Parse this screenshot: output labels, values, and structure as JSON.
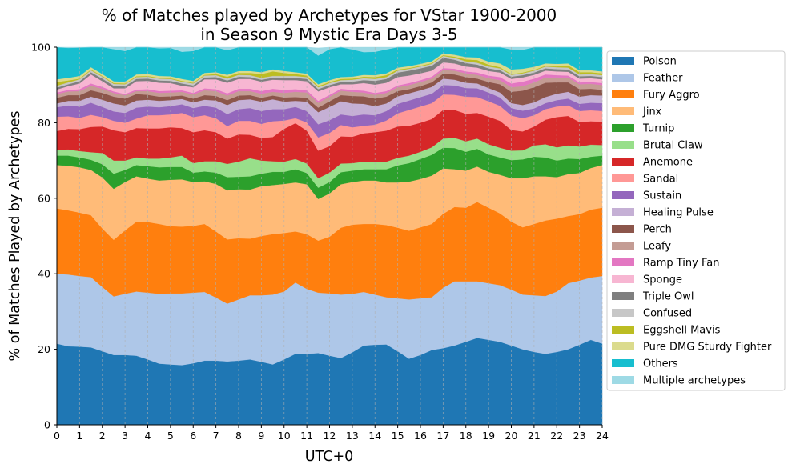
{
  "chart_data": {
    "type": "area",
    "stacked": true,
    "title_lines": [
      "% of Matches played by Archetypes for VStar 1900-2000",
      "in Season 9 Mystic Era Days 3-5"
    ],
    "xlabel": "UTC+0",
    "ylabel": "% of Matches Played by Archetypes",
    "xlim": [
      0,
      24
    ],
    "ylim": [
      0,
      100
    ],
    "x_ticks": [
      0,
      1,
      2,
      3,
      4,
      5,
      6,
      7,
      8,
      9,
      10,
      11,
      12,
      13,
      14,
      15,
      16,
      17,
      18,
      19,
      20,
      21,
      22,
      23,
      24
    ],
    "y_ticks": [
      0,
      20,
      40,
      60,
      80,
      100
    ],
    "grid": "vertical-dashed",
    "legend_position": "right-outside",
    "x": [
      0,
      0.5,
      1,
      1.5,
      2,
      2.5,
      3,
      3.5,
      4,
      4.5,
      5,
      5.5,
      6,
      6.5,
      7,
      7.5,
      8,
      8.5,
      9,
      9.5,
      10,
      10.5,
      11,
      11.5,
      12,
      12.5,
      13,
      13.5,
      14,
      14.5,
      15,
      15.5,
      16,
      16.5,
      17,
      17.5,
      18,
      18.5,
      19,
      19.5,
      20,
      20.5,
      21,
      21.5,
      22,
      22.5,
      23,
      23.5,
      24
    ],
    "series": [
      {
        "name": "Poison",
        "color": "#1f77b4",
        "values": [
          21.5,
          20.8,
          20.7,
          20.5,
          19.5,
          18.5,
          18.5,
          18.3,
          17.3,
          16.2,
          16,
          15.8,
          16.3,
          17,
          17,
          16.8,
          17,
          17.3,
          16.7,
          16,
          17.3,
          18.8,
          18.8,
          19,
          18.3,
          17.7,
          19.2,
          21,
          21.2,
          21.3,
          19.5,
          17.5,
          18.5,
          19.8,
          20.3,
          21,
          22,
          23,
          22.5,
          22,
          21,
          20,
          19.3,
          18.8,
          19.3,
          20,
          21.2,
          22.5,
          21.5
        ]
      },
      {
        "name": "Feather",
        "color": "#aec7e8",
        "values": [
          18.5,
          19,
          18.7,
          18.6,
          17,
          15.5,
          16.2,
          17,
          17.7,
          18.5,
          18.8,
          19,
          18.7,
          18.2,
          16.7,
          15.3,
          16.2,
          17,
          17.6,
          18.5,
          18,
          18.9,
          17.2,
          16,
          16.5,
          16.8,
          15.5,
          14.2,
          13.3,
          12.5,
          14,
          15.7,
          15,
          14,
          16,
          17,
          16,
          15,
          15,
          15,
          14.8,
          14.5,
          15,
          15.3,
          16,
          17.5,
          17,
          16.5,
          17.9
        ]
      },
      {
        "name": "Fury Aggro",
        "color": "#ff7f0e",
        "values": [
          17.3,
          17,
          16.8,
          16.4,
          15.5,
          15,
          16.8,
          18.5,
          18.7,
          18.5,
          17.8,
          17.7,
          17.7,
          18,
          17.5,
          17,
          16.2,
          15,
          15.7,
          16,
          15.5,
          13.5,
          14.5,
          13.8,
          15,
          17.7,
          18.3,
          18,
          18.7,
          19.1,
          18.7,
          18.2,
          18.8,
          19.4,
          19.6,
          19.7,
          19.5,
          21,
          20,
          19,
          18,
          17.8,
          18.9,
          20,
          19.3,
          17.8,
          17.6,
          18,
          18.1
        ]
      },
      {
        "name": "Jinx",
        "color": "#ffbb78",
        "values": [
          11.5,
          11.8,
          12,
          12,
          13.5,
          13.5,
          12.8,
          12,
          11.5,
          11.5,
          12.3,
          12.5,
          11.6,
          11.3,
          12.6,
          13,
          13,
          13,
          13.2,
          13,
          13,
          13,
          13.2,
          11,
          11.5,
          11.5,
          11.3,
          11.5,
          11.5,
          11.3,
          12,
          13,
          12.8,
          12.8,
          12,
          10,
          9.8,
          9.4,
          9.5,
          10.2,
          11.5,
          13,
          12.6,
          11.7,
          11,
          11.1,
          10.9,
          11,
          11.3
        ]
      },
      {
        "name": "Turnip",
        "color": "#2ca02c",
        "values": [
          2.5,
          2.7,
          2.6,
          2.7,
          3.5,
          4,
          3.2,
          3,
          3.3,
          3.5,
          3.4,
          3.3,
          2.5,
          2.6,
          3,
          3.5,
          3.3,
          3.5,
          3.3,
          3.5,
          3.2,
          3.5,
          3,
          3,
          3,
          3.2,
          3,
          3,
          3,
          3.5,
          4.5,
          4.9,
          5.3,
          5.5,
          5.5,
          5.6,
          5,
          4.7,
          4.6,
          4.6,
          4.8,
          5,
          5.2,
          5,
          4.4,
          4.1,
          3.7,
          3,
          2.5
        ]
      },
      {
        "name": "Brutal Claw",
        "color": "#98df8a",
        "values": [
          1.5,
          1.6,
          1.7,
          2,
          3,
          3.5,
          2.5,
          2,
          2,
          2.3,
          2.5,
          3,
          2.5,
          2.7,
          3,
          3.5,
          4,
          4.8,
          3.5,
          2.8,
          2.7,
          2.7,
          2.5,
          2.5,
          2.5,
          2.3,
          2,
          2,
          2,
          2,
          2,
          2,
          1.9,
          2,
          2.4,
          2.7,
          2.8,
          2.7,
          2.7,
          2.6,
          2.5,
          2.4,
          3,
          3.5,
          3.5,
          3.5,
          3.3,
          3.2,
          2.8
        ]
      },
      {
        "name": "Anemone",
        "color": "#d62728",
        "values": [
          5,
          5.5,
          5.8,
          6.7,
          7,
          8,
          7.5,
          7.8,
          8,
          8,
          8,
          7.3,
          8.2,
          8.2,
          7.7,
          6.7,
          7.2,
          6.2,
          6,
          6.4,
          8.7,
          9.5,
          8.7,
          7.3,
          7,
          7.2,
          7,
          7.5,
          7.8,
          8.2,
          8.3,
          7.9,
          7.7,
          7.5,
          7.6,
          7.4,
          7.3,
          6.8,
          7.3,
          7.1,
          5.5,
          5,
          5,
          6.5,
          8,
          7.8,
          6.5,
          6.2,
          6.2
        ]
      },
      {
        "name": "Sandal",
        "color": "#ff9896",
        "values": [
          3.8,
          3.3,
          3,
          3.2,
          2.5,
          2.5,
          2.5,
          2.5,
          3.5,
          3.5,
          3.4,
          4,
          4,
          4,
          3.7,
          3.3,
          3.6,
          3.7,
          3.7,
          4.2,
          2.2,
          1.3,
          2.2,
          3.5,
          3.5,
          3,
          2.5,
          2,
          2,
          2.7,
          3.5,
          4.2,
          4.3,
          4.2,
          4.1,
          4,
          4.5,
          4.2,
          4.1,
          4,
          3.8,
          3.5,
          3,
          2.8,
          2.8,
          2.8,
          2.9,
          2.9,
          2.8
        ]
      },
      {
        "name": "Sustain",
        "color": "#9467bd",
        "values": [
          2.5,
          2.9,
          3,
          3.2,
          2.7,
          2.5,
          2.6,
          2.9,
          2.3,
          2.1,
          2.2,
          2.3,
          2.4,
          2.5,
          2.8,
          3.2,
          3.1,
          3.4,
          3.4,
          3.2,
          3,
          3,
          3,
          3.5,
          3.4,
          2.8,
          3,
          3,
          2.5,
          2.5,
          2.5,
          2.5,
          2.5,
          2.5,
          2.5,
          2.5,
          2.3,
          2.3,
          2.3,
          2.2,
          2,
          2,
          1.8,
          1.6,
          1.7,
          1.8,
          1.9,
          2,
          2.1
        ]
      },
      {
        "name": "Healing Pulse",
        "color": "#c5b0d5",
        "values": [
          1,
          1.2,
          1.5,
          1.6,
          1.9,
          2.1,
          2,
          1.9,
          1.8,
          1.7,
          1.6,
          1.4,
          1.5,
          1.6,
          1.9,
          2.4,
          2.4,
          2.3,
          2.5,
          2.6,
          2,
          1.6,
          2.5,
          3.2,
          3.5,
          3.5,
          3.3,
          2.8,
          2.4,
          2,
          2,
          1.9,
          1.8,
          1.8,
          1.7,
          1.5,
          1.4,
          1.3,
          1.2,
          1.3,
          1.3,
          1.5,
          1.6,
          1.6,
          1.7,
          1.8,
          1.9,
          2,
          2
        ]
      },
      {
        "name": "Perch",
        "color": "#8c564b",
        "values": [
          1.5,
          1.5,
          1.5,
          1.7,
          1.8,
          1.8,
          1.8,
          1.7,
          1.3,
          1.1,
          1,
          0.9,
          1,
          1.2,
          1.2,
          1.3,
          1.2,
          1.1,
          1,
          1,
          1.1,
          1,
          1,
          1.2,
          1.5,
          1.6,
          2,
          2,
          2,
          1.8,
          1.4,
          1.1,
          1.1,
          1.2,
          1.3,
          1.4,
          1.5,
          1.3,
          1.6,
          2.2,
          3,
          3.8,
          4,
          3.8,
          3,
          2.5,
          2,
          1.7,
          1.5
        ]
      },
      {
        "name": "Leafy",
        "color": "#c49c94",
        "values": [
          1,
          1,
          1.1,
          1.2,
          1.1,
          1,
          0.9,
          0.8,
          1,
          1,
          1,
          1,
          1.1,
          1.3,
          1.3,
          1.2,
          1.2,
          1.1,
          1.1,
          1,
          1.2,
          1.4,
          1.4,
          1.3,
          1.2,
          1.2,
          1.1,
          1,
          1,
          1,
          1,
          1.1,
          1.1,
          1,
          1,
          1,
          1,
          1,
          1,
          1.1,
          1.2,
          1.2,
          1.3,
          1.4,
          1.3,
          1.3,
          1.3,
          1.3,
          1.3
        ]
      },
      {
        "name": "Ramp Tiny Fan",
        "color": "#e377c2",
        "values": [
          0.4,
          0.4,
          0.5,
          0.6,
          0.5,
          0.4,
          0.3,
          0.4,
          0.5,
          0.5,
          0.5,
          0.4,
          0.4,
          0.5,
          0.5,
          0.6,
          0.6,
          0.6,
          0.7,
          0.8,
          0.8,
          0.7,
          0.6,
          0.5,
          0.5,
          0.5,
          0.5,
          0.5,
          0.5,
          0.5,
          0.5,
          0.5,
          0.5,
          0.5,
          0.5,
          0.5,
          0.5,
          0.6,
          0.7,
          0.8,
          1,
          1.2,
          1,
          0.8,
          0.6,
          0.5,
          0.5,
          0.5,
          0.5
        ]
      },
      {
        "name": "Sponge",
        "color": "#f7b6d2",
        "values": [
          0.8,
          1,
          1.5,
          2.4,
          1.5,
          0.8,
          1.5,
          2.2,
          2.2,
          2.2,
          2,
          1.2,
          1.5,
          2.4,
          2.6,
          2.8,
          2.6,
          2.6,
          2.5,
          2.4,
          2.6,
          2.4,
          2.4,
          2.5,
          2,
          1.2,
          1.5,
          2,
          2.2,
          2.2,
          2.2,
          2,
          1.8,
          1.6,
          1.5,
          1.4,
          1.3,
          1.3,
          1.2,
          1.2,
          1.2,
          1.1,
          1,
          1,
          1,
          1,
          1,
          1,
          1
        ]
      },
      {
        "name": "Triple Owl",
        "color": "#7f7f7f",
        "values": [
          0.5,
          0.5,
          0.6,
          0.6,
          0.7,
          0.7,
          0.6,
          0.6,
          0.6,
          0.6,
          0.6,
          0.6,
          0.5,
          0.5,
          0.6,
          0.6,
          0.6,
          0.5,
          0.5,
          0.5,
          0.6,
          0.6,
          0.6,
          0.6,
          0.6,
          0.6,
          0.7,
          0.8,
          1,
          1,
          1.2,
          1.3,
          1.3,
          1.3,
          1.2,
          1,
          0.9,
          0.8,
          0.7,
          0.6,
          0.6,
          0.6,
          0.6,
          0.6,
          0.6,
          0.6,
          0.6,
          0.6,
          0.6
        ]
      },
      {
        "name": "Confused",
        "color": "#c7c7c7",
        "values": [
          0.5,
          0.5,
          0.5,
          0.5,
          0.5,
          0.5,
          0.5,
          0.5,
          0.5,
          0.5,
          0.5,
          0.5,
          0.5,
          0.5,
          0.5,
          0.5,
          0.5,
          0.5,
          0.5,
          0.5,
          0.5,
          0.5,
          0.5,
          0.5,
          0.5,
          0.5,
          0.5,
          0.5,
          0.5,
          0.5,
          0.5,
          0.5,
          0.5,
          0.5,
          0.5,
          0.5,
          0.5,
          0.5,
          0.5,
          0.5,
          0.5,
          0.5,
          0.5,
          0.5,
          0.5,
          0.5,
          0.5,
          0.5,
          0.5
        ]
      },
      {
        "name": "Eggshell Mavis",
        "color": "#bcbd22",
        "values": [
          1,
          0.5,
          0.2,
          0.2,
          0.2,
          0.2,
          0.2,
          0.2,
          0.2,
          0.2,
          0.2,
          0.2,
          0.2,
          0.2,
          0.3,
          0.5,
          0.5,
          0.6,
          1,
          1.2,
          0.8,
          0.5,
          0.4,
          0.3,
          0.3,
          0.3,
          0.3,
          0.4,
          0.5,
          0.5,
          0.3,
          0.2,
          0.2,
          0.2,
          0.2,
          0.3,
          0.5,
          0.7,
          0.5,
          0.3,
          0.2,
          0.2,
          0.2,
          0.2,
          0.4,
          0.6,
          0.6,
          0.5,
          0.5
        ]
      },
      {
        "name": "Pure DMG Sturdy Fighter",
        "color": "#dbdb8d",
        "values": [
          0.7,
          0.7,
          0.7,
          0.6,
          0.5,
          0.5,
          0.5,
          0.5,
          0.5,
          0.5,
          0.5,
          0.5,
          0.5,
          0.5,
          0.5,
          0.5,
          0.5,
          0.5,
          0.5,
          0.5,
          0.5,
          0.5,
          0.5,
          0.5,
          0.5,
          0.5,
          0.5,
          0.5,
          0.5,
          0.5,
          0.5,
          0.5,
          0.5,
          0.5,
          0.5,
          0.5,
          0.6,
          0.7,
          0.8,
          1,
          1.2,
          1,
          0.8,
          0.6,
          0.5,
          0.5,
          0.5,
          0.5,
          0.5
        ]
      },
      {
        "name": "Others",
        "color": "#17becf",
        "values": [
          8.5,
          7.9,
          7.5,
          7.7,
          8,
          8.5,
          8.1,
          7.5,
          7.2,
          7.3,
          7.5,
          7.2,
          7.9,
          7.5,
          6.9,
          6.5,
          6.7,
          6.8,
          7.3,
          7.2,
          7.6,
          7,
          7.2,
          7.6,
          8.2,
          8.5,
          7.2,
          6,
          6.2,
          6.3,
          6.5,
          6.3,
          6.2,
          5.7,
          5.3,
          5,
          5,
          4.8,
          5.3,
          5.6,
          5.3,
          5,
          5.5,
          6,
          6.1,
          6.5,
          6.8,
          7.1,
          7.5
        ]
      },
      {
        "name": "Multiple archetypes",
        "color": "#9edae5",
        "values": [
          1.5,
          2,
          2,
          2,
          2,
          2,
          2,
          2,
          2,
          2,
          2,
          2,
          2,
          2,
          2,
          2,
          2,
          2,
          2,
          2,
          2,
          2,
          2,
          2,
          3,
          3,
          3,
          3,
          3,
          3,
          3,
          2.5,
          2.5,
          2.5,
          2,
          2,
          1.5,
          1,
          1,
          1,
          1,
          1,
          1,
          1,
          1,
          1,
          1.5,
          2,
          2
        ]
      }
    ]
  }
}
